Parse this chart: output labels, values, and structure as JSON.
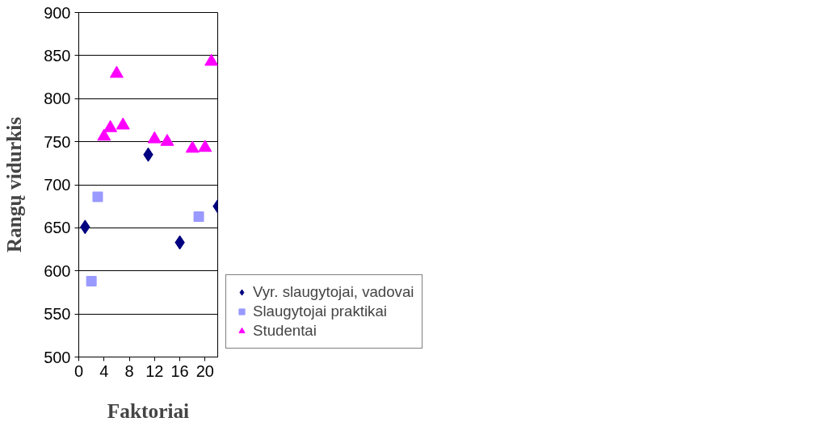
{
  "chart_data": {
    "type": "scatter",
    "xlabel": "Faktoriai",
    "ylabel": "Rangų vidurkis",
    "xlim": [
      0,
      22
    ],
    "xticks": [
      0,
      4,
      8,
      12,
      16,
      20
    ],
    "ylim": [
      500,
      900
    ],
    "yticks": [
      500,
      550,
      600,
      650,
      700,
      750,
      800,
      850,
      900
    ],
    "grid": "y",
    "legend": "right",
    "series": [
      {
        "name": "Vyr. slaugytojai, vadovai",
        "color": "#000080",
        "marker": "diamond",
        "x": [
          1,
          11,
          16,
          22
        ],
        "values": [
          651,
          735,
          633,
          675
        ]
      },
      {
        "name": "Slaugytojai praktikai",
        "color": "#9999ff",
        "marker": "square",
        "x": [
          2,
          3,
          19
        ],
        "values": [
          588,
          686,
          663
        ]
      },
      {
        "name": "Studentai",
        "color": "#ff00ff",
        "marker": "triangle",
        "x": [
          4,
          5,
          6,
          7,
          12,
          14,
          18,
          20,
          21
        ],
        "values": [
          756,
          766,
          829,
          769,
          753,
          750,
          742,
          743,
          843
        ]
      }
    ]
  }
}
